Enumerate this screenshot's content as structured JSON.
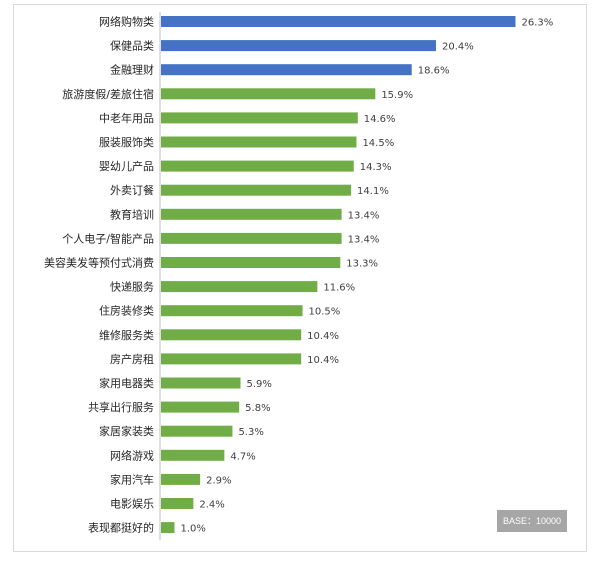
{
  "chart_data": {
    "type": "bar",
    "orientation": "horizontal",
    "categories": [
      "网络购物类",
      "保健品类",
      "金融理财",
      "旅游度假/差旅住宿",
      "中老年用品",
      "服装服饰类",
      "婴幼儿产品",
      "外卖订餐",
      "教育培训",
      "个人电子/智能产品",
      "美容美发等预付式消费",
      "快递服务",
      "住房装修类",
      "维修服务类",
      "房产房租",
      "家用电器类",
      "共享出行服务",
      "家居家装类",
      "网络游戏",
      "家用汽车",
      "电影娱乐",
      "表现都挺好的"
    ],
    "values": [
      26.3,
      20.4,
      18.6,
      15.9,
      14.6,
      14.5,
      14.3,
      14.1,
      13.4,
      13.4,
      13.3,
      11.6,
      10.5,
      10.4,
      10.4,
      5.9,
      5.8,
      5.3,
      4.7,
      2.9,
      2.4,
      1.0
    ],
    "value_labels": [
      "26.3%",
      "20.4%",
      "18.6%",
      "15.9%",
      "14.6%",
      "14.5%",
      "14.3%",
      "14.1%",
      "13.4%",
      "13.4%",
      "13.3%",
      "11.6%",
      "10.5%",
      "10.4%",
      "10.4%",
      "5.9%",
      "5.8%",
      "5.3%",
      "4.7%",
      "2.9%",
      "2.4%",
      "1.0%"
    ],
    "highlight_count": 3,
    "colors": {
      "highlight": "#4472c4",
      "default": "#70ad47",
      "axis": "#bfbfbf"
    },
    "xlim": [
      0,
      26.3
    ],
    "grid": false,
    "legend": "none"
  },
  "badge": {
    "text": "BASE：10000"
  }
}
